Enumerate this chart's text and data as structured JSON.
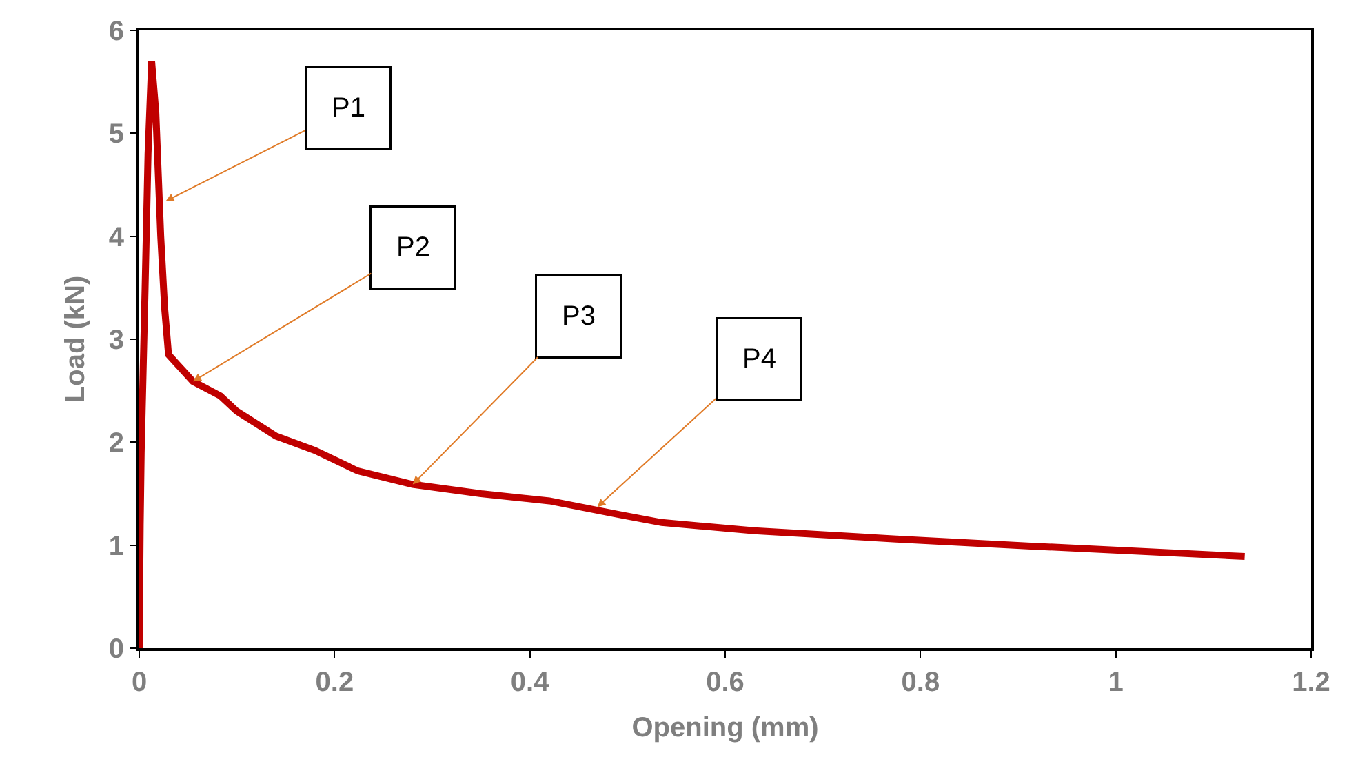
{
  "chart_data": {
    "type": "line",
    "xlabel": "Opening (mm)",
    "ylabel": "Load (kN)",
    "x": [
      0,
      0.001,
      0.002,
      0.003,
      0.006,
      0.009,
      0.0127,
      0.017,
      0.022,
      0.026,
      0.03,
      0.055,
      0.083,
      0.1,
      0.14,
      0.18,
      0.224,
      0.28,
      0.35,
      0.42,
      0.49,
      0.535,
      0.63,
      0.775,
      0.916,
      1.132
    ],
    "series": [
      {
        "color": "#c00000",
        "values": [
          0,
          1.2,
          1.9,
          2.3,
          3.5,
          4.8,
          5.7,
          5.2,
          4.0,
          3.3,
          2.85,
          2.59,
          2.45,
          2.3,
          2.06,
          1.92,
          1.72,
          1.59,
          1.5,
          1.43,
          1.3,
          1.22,
          1.14,
          1.06,
          0.99,
          0.89
        ]
      }
    ],
    "xlim": [
      0,
      1.2
    ],
    "xticks": [
      0,
      0.2,
      0.4,
      0.6,
      0.8,
      1,
      1.2
    ],
    "ylim": [
      0,
      6
    ],
    "yticks": [
      0,
      1,
      2,
      3,
      4,
      5,
      6
    ],
    "legend": false,
    "marker": "none",
    "line_style": "solid",
    "annotations": [
      {
        "text": "P1",
        "x": 0.027,
        "y": 4.34
      },
      {
        "text": "P2",
        "x": 0.055,
        "y": 2.59
      },
      {
        "text": "P3",
        "x": 0.28,
        "y": 1.59
      },
      {
        "text": "P4",
        "x": 0.469,
        "y": 1.37
      }
    ]
  }
}
